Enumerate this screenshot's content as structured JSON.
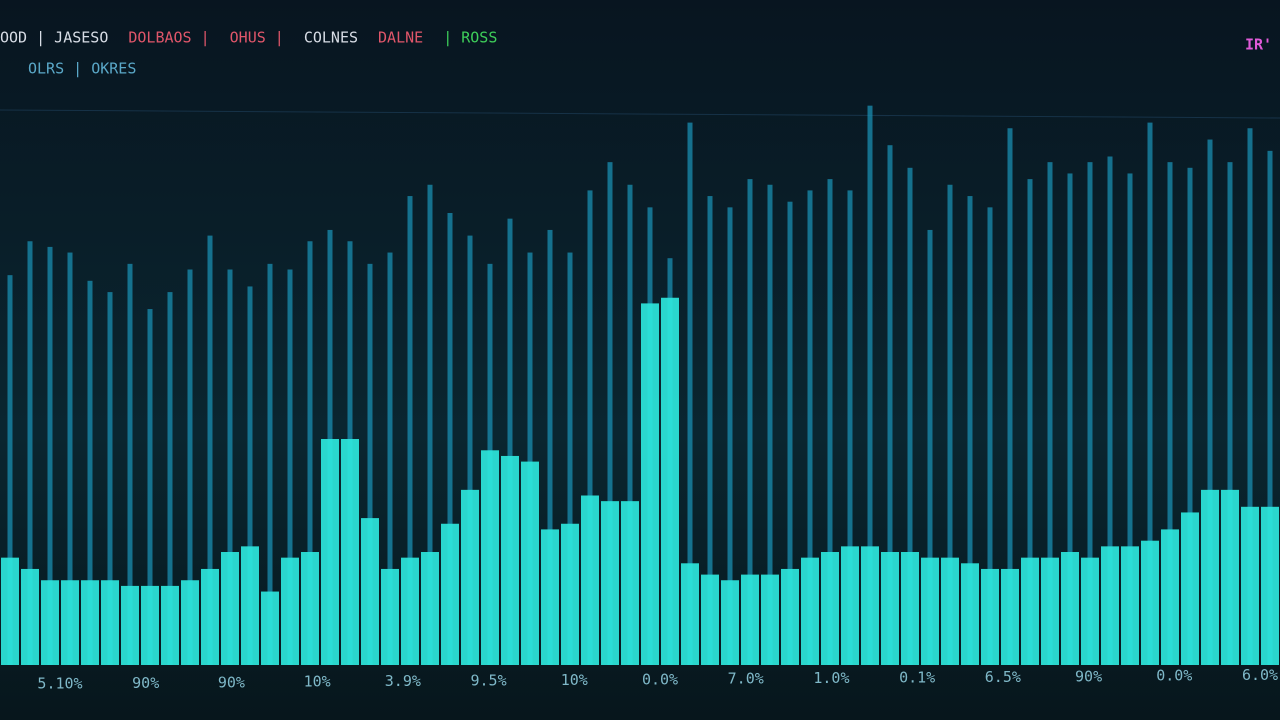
{
  "header": {
    "items": [
      {
        "text": "OOD | JASESO",
        "color": "#d8dde6"
      },
      {
        "text": "DOLBAOS |",
        "color": "#e0566a"
      },
      {
        "text": "OHUS |",
        "color": "#e0566a"
      },
      {
        "text": "COLNES",
        "color": "#d8dde6"
      },
      {
        "text": "DALNE",
        "color": "#e0566a"
      },
      {
        "text": "| ROSS",
        "color": "#3ecf5a"
      }
    ],
    "subtitle": "OLRS | OKRES",
    "badge": "IR'"
  },
  "chart_data": {
    "type": "bar",
    "x_labels": [
      "5.10%",
      "90%",
      "90%",
      "10%",
      "3.9%",
      "9.5%",
      "10%",
      "0.0%",
      "7.0%",
      "1.0%",
      "0.1%",
      "6.5%",
      "90%",
      "0.0%",
      "6.0%"
    ],
    "ylim": [
      0,
      100
    ],
    "series": [
      {
        "color": "#1a8db0",
        "values": [
          69,
          75,
          74,
          73,
          68,
          66,
          71,
          63,
          66,
          70,
          76,
          70,
          67,
          71,
          70,
          75,
          77,
          75,
          71,
          73,
          83,
          85,
          80,
          76,
          71,
          79,
          73,
          77,
          73,
          84,
          89,
          85,
          81,
          72,
          96,
          83,
          81,
          86,
          85,
          82,
          84,
          86,
          84,
          99,
          92,
          88,
          77,
          85,
          83,
          81,
          95,
          86,
          89,
          87,
          89,
          90,
          87,
          96,
          89,
          88,
          93,
          89,
          95,
          91
        ]
      },
      {
        "color": "#2ee6dc",
        "values": [
          19,
          17,
          15,
          15,
          15,
          15,
          14,
          14,
          14,
          15,
          17,
          20,
          21,
          13,
          19,
          20,
          40,
          40,
          26,
          17,
          19,
          20,
          25,
          31,
          38,
          37,
          36,
          24,
          25,
          30,
          29,
          29,
          64,
          65,
          18,
          16,
          15,
          16,
          16,
          17,
          19,
          20,
          21,
          21,
          20,
          20,
          19,
          19,
          18,
          17,
          17,
          19,
          19,
          20,
          19,
          21,
          21,
          22,
          24,
          27,
          31,
          31,
          28,
          28
        ]
      }
    ]
  }
}
